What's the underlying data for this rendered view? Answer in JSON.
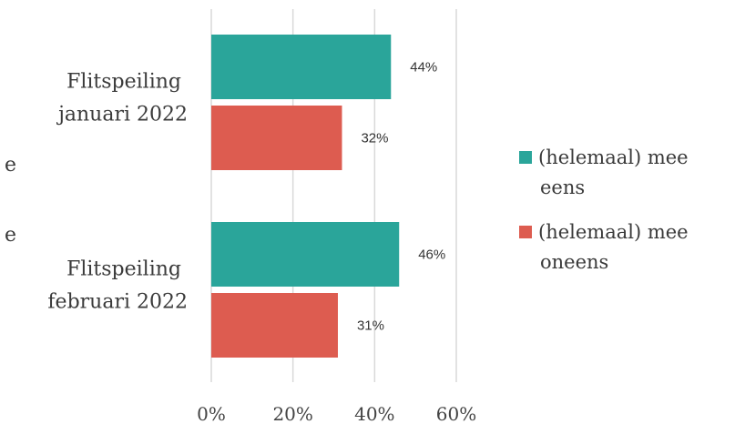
{
  "chart_data": {
    "type": "bar",
    "orientation": "horizontal",
    "categories": [
      "Flitspeiling januari 2022",
      "Flitspeiling februari 2022"
    ],
    "category_lines": [
      [
        "Flitspeiling",
        "januari 2022"
      ],
      [
        "Flitspeiling",
        "februari 2022"
      ]
    ],
    "series": [
      {
        "name": "(helemaal) mee eens",
        "legend_lines": [
          "(helemaal) mee",
          "eens"
        ],
        "color": "#2aa59a",
        "values": [
          44,
          46
        ],
        "labels": [
          "44%",
          "46%"
        ]
      },
      {
        "name": "(helemaal) mee oneens",
        "legend_lines": [
          "(helemaal) mee",
          "oneens"
        ],
        "color": "#dd5c50",
        "values": [
          32,
          31
        ],
        "labels": [
          "32%",
          "31%"
        ]
      }
    ],
    "xticks": [
      "0%",
      "20%",
      "40%",
      "60%"
    ],
    "xlim": [
      0,
      60
    ],
    "grid": true,
    "legend_position": "right",
    "clipped_left_fragments": [
      "e",
      "e"
    ]
  }
}
